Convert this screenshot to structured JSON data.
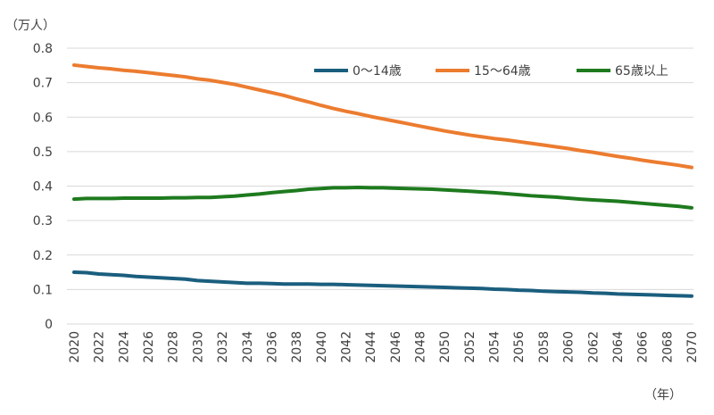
{
  "chart_data": {
    "type": "line",
    "title": "",
    "xlabel": "",
    "ylabel": "",
    "y_unit": "（万人）",
    "x_unit": "（年）",
    "ylim": [
      0,
      0.8
    ],
    "y_ticks": [
      0,
      0.1,
      0.2,
      0.3,
      0.4,
      0.5,
      0.6,
      0.7,
      0.8
    ],
    "y_tick_labels": [
      "0",
      "0.1",
      "0.2",
      "0.3",
      "0.4",
      "0.5",
      "0.6",
      "0.7",
      "0.8"
    ],
    "x": [
      2020,
      2021,
      2022,
      2023,
      2024,
      2025,
      2026,
      2027,
      2028,
      2029,
      2030,
      2031,
      2032,
      2033,
      2034,
      2035,
      2036,
      2037,
      2038,
      2039,
      2040,
      2041,
      2042,
      2043,
      2044,
      2045,
      2046,
      2047,
      2048,
      2049,
      2050,
      2051,
      2052,
      2053,
      2054,
      2055,
      2056,
      2057,
      2058,
      2059,
      2060,
      2061,
      2062,
      2063,
      2064,
      2065,
      2066,
      2067,
      2068,
      2069,
      2070
    ],
    "x_tick_labels": [
      "2020",
      "2022",
      "2024",
      "2026",
      "2028",
      "2030",
      "2032",
      "2034",
      "2036",
      "2038",
      "2040",
      "2042",
      "2044",
      "2046",
      "2048",
      "2050",
      "2052",
      "2054",
      "2056",
      "2058",
      "2060",
      "2062",
      "2064",
      "2066",
      "2068",
      "2070"
    ],
    "grid": "horizontal",
    "legend_position": "top-right",
    "series": [
      {
        "name": "0～14歳",
        "color": "#1a5e7e",
        "values": [
          0.15,
          0.149,
          0.145,
          0.143,
          0.141,
          0.138,
          0.136,
          0.134,
          0.132,
          0.13,
          0.126,
          0.124,
          0.122,
          0.12,
          0.118,
          0.118,
          0.117,
          0.116,
          0.116,
          0.116,
          0.115,
          0.115,
          0.114,
          0.113,
          0.112,
          0.111,
          0.11,
          0.109,
          0.108,
          0.107,
          0.106,
          0.105,
          0.104,
          0.103,
          0.101,
          0.1,
          0.098,
          0.097,
          0.095,
          0.094,
          0.093,
          0.092,
          0.09,
          0.089,
          0.087,
          0.086,
          0.085,
          0.084,
          0.083,
          0.082,
          0.081
        ]
      },
      {
        "name": "15～64歳",
        "color": "#ec7c30",
        "values": [
          0.751,
          0.747,
          0.743,
          0.74,
          0.736,
          0.733,
          0.729,
          0.725,
          0.721,
          0.717,
          0.711,
          0.707,
          0.701,
          0.695,
          0.687,
          0.679,
          0.671,
          0.663,
          0.653,
          0.644,
          0.634,
          0.625,
          0.617,
          0.61,
          0.602,
          0.595,
          0.588,
          0.581,
          0.574,
          0.567,
          0.56,
          0.554,
          0.548,
          0.543,
          0.538,
          0.534,
          0.529,
          0.524,
          0.519,
          0.514,
          0.509,
          0.503,
          0.498,
          0.492,
          0.486,
          0.481,
          0.475,
          0.47,
          0.465,
          0.46,
          0.454
        ]
      },
      {
        "name": "65歳以上",
        "color": "#1e7a1e",
        "values": [
          0.362,
          0.364,
          0.364,
          0.364,
          0.365,
          0.365,
          0.365,
          0.365,
          0.366,
          0.366,
          0.367,
          0.367,
          0.369,
          0.371,
          0.374,
          0.377,
          0.381,
          0.384,
          0.387,
          0.391,
          0.393,
          0.395,
          0.395,
          0.396,
          0.395,
          0.395,
          0.394,
          0.393,
          0.392,
          0.391,
          0.389,
          0.387,
          0.385,
          0.383,
          0.381,
          0.378,
          0.375,
          0.372,
          0.37,
          0.368,
          0.365,
          0.362,
          0.36,
          0.358,
          0.356,
          0.353,
          0.35,
          0.347,
          0.344,
          0.341,
          0.337
        ]
      }
    ]
  }
}
